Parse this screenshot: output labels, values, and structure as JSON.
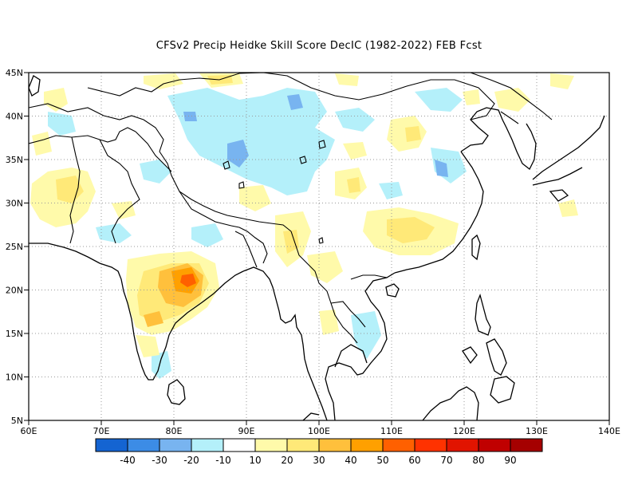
{
  "title": "CFSv2 Precip Heidke Skill Score DecIC (1982-2022) FEB Fcst",
  "map": {
    "lon_range": [
      60,
      140
    ],
    "lat_range": [
      5,
      45
    ],
    "x_ticks": [
      "60E",
      "70E",
      "80E",
      "90E",
      "100E",
      "110E",
      "120E",
      "130E",
      "140E"
    ],
    "y_ticks": [
      "45N",
      "40N",
      "35N",
      "30N",
      "25N",
      "20N",
      "15N",
      "10N",
      "5N"
    ],
    "gridlines": true
  },
  "colorbar": {
    "labels": [
      "-40",
      "-30",
      "-20",
      "-10",
      "10",
      "20",
      "30",
      "40",
      "50",
      "60",
      "70",
      "80",
      "90"
    ],
    "colors": [
      "#1464d2",
      "#3c8ce6",
      "#78b4f0",
      "#b4f0fa",
      "#ffffff",
      "#fffaaa",
      "#ffe978",
      "#ffc03c",
      "#ffa000",
      "#ff6000",
      "#ff3200",
      "#e11400",
      "#c00000",
      "#a50000"
    ]
  }
}
